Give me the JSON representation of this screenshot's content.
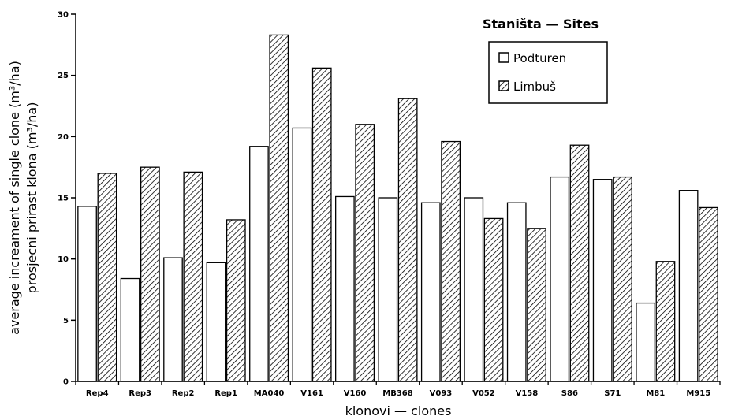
{
  "chart_data": {
    "type": "bar",
    "categories": [
      "Rep4",
      "Rep3",
      "Rep2",
      "Rep1",
      "MA040",
      "V161",
      "V160",
      "MB368",
      "V093",
      "V052",
      "V158",
      "S86",
      "S71",
      "M81",
      "M915"
    ],
    "series": [
      {
        "name": "Podturen",
        "values": [
          14.3,
          8.4,
          10.1,
          9.7,
          19.2,
          20.7,
          15.1,
          15.0,
          14.6,
          15.0,
          14.6,
          16.7,
          16.5,
          6.4,
          15.6
        ],
        "pattern": "open"
      },
      {
        "name": "Limbuš",
        "values": [
          17.0,
          17.5,
          17.1,
          13.2,
          28.3,
          25.6,
          21.0,
          23.1,
          19.6,
          13.3,
          12.5,
          19.3,
          16.7,
          9.8,
          14.2
        ],
        "pattern": "hatched"
      }
    ],
    "xlabel": "klonovi — clones",
    "ylabel_lines": [
      "average increament of single clone (m³/ha)",
      "prosjecni prirast klona (m³/ha)"
    ],
    "ylim": [
      0,
      30
    ],
    "yticks": [
      0,
      5,
      10,
      15,
      20,
      25,
      30
    ],
    "grid": false,
    "legend": {
      "title": "Staništa — Sites",
      "placement": "top-right"
    }
  }
}
